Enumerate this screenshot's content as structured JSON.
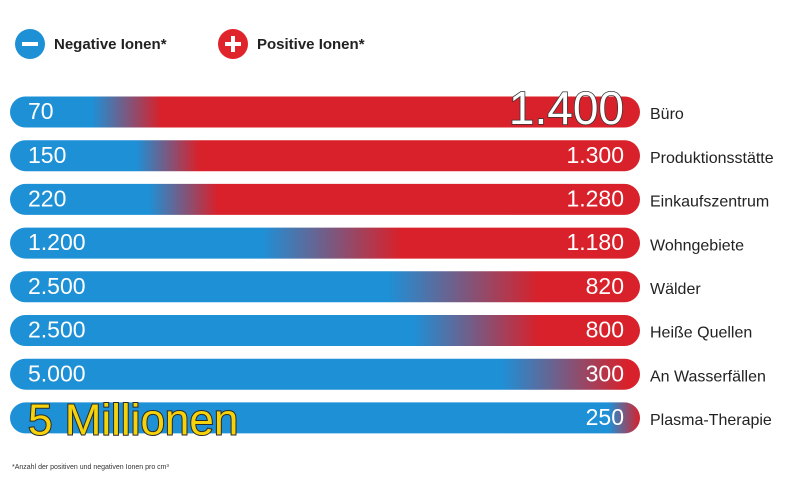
{
  "legend": {
    "negative": "Negative Ionen*",
    "positive": "Positive Ionen*"
  },
  "rows": [
    {
      "negative": "70",
      "positive": "1.400",
      "place": "Büro"
    },
    {
      "negative": "150",
      "positive": "1.300",
      "place": "Produktionsstätte"
    },
    {
      "negative": "220",
      "positive": "1.280",
      "place": "Einkaufszentrum"
    },
    {
      "negative": "1.200",
      "positive": "1.180",
      "place": "Wohngebiete"
    },
    {
      "negative": "2.500",
      "positive": "820",
      "place": "Wälder"
    },
    {
      "negative": "2.500",
      "positive": "800",
      "place": "Heiße Quellen"
    },
    {
      "negative": "5.000",
      "positive": "300",
      "place": "An Wasserfällen"
    },
    {
      "negative": "5 Millionen",
      "positive": "250",
      "place": "Plasma-Therapie"
    }
  ],
  "footnote": "*Anzahl der positiven und negativen Ionen pro cm³"
}
